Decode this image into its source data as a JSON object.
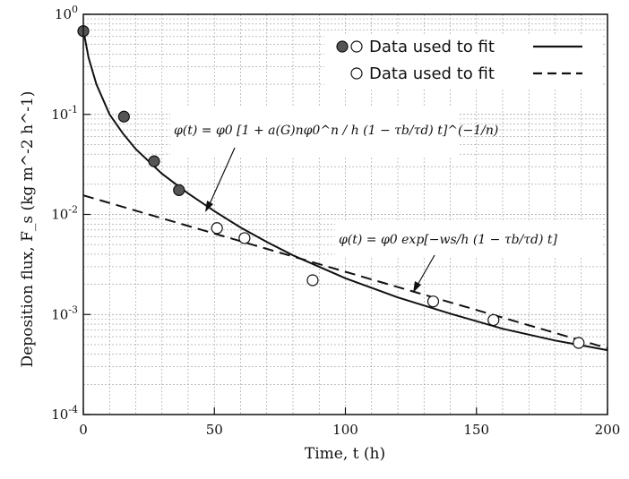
{
  "chart_data": {
    "type": "scatter",
    "title": "",
    "xlabel": "Time, t (h)",
    "ylabel": "Deposition flux, F_s (kg m^-2 h^-1)",
    "x_scale": "linear",
    "y_scale": "log",
    "xlim": [
      0,
      200
    ],
    "ylim": [
      0.0001,
      1
    ],
    "x_ticks": [
      "0",
      "50",
      "100",
      "150",
      "200"
    ],
    "y_ticks": [
      {
        "base": "10",
        "exp": "0",
        "value": 1
      },
      {
        "base": "10",
        "exp": "-1",
        "value": 0.1
      },
      {
        "base": "10",
        "exp": "-2",
        "value": 0.01
      },
      {
        "base": "10",
        "exp": "-3",
        "value": 0.001
      },
      {
        "base": "10",
        "exp": "-4",
        "value": 0.0001
      }
    ],
    "grid": true,
    "legend_position": "top-right",
    "legend": [
      {
        "label": "Data used to fit",
        "markers": [
          "filled",
          "open"
        ],
        "line": "solid"
      },
      {
        "label": "Data used to fit",
        "markers": [
          "open"
        ],
        "line": "dashed"
      }
    ],
    "series": [
      {
        "marker": "filled",
        "x": [
          0,
          15.5,
          27,
          36.5
        ],
        "y": [
          0.68,
          0.095,
          0.034,
          0.0175
        ]
      },
      {
        "marker": "open",
        "x": [
          51,
          61.5,
          87.5,
          133.5,
          156.5,
          189
        ],
        "y": [
          0.0073,
          0.0058,
          0.0022,
          0.00135,
          0.00088,
          0.00052
        ]
      }
    ],
    "fit_curves": [
      {
        "style": "solid",
        "equation": "φ(t) = φ0 [1 + a(G)nφ0^n / h (1 − τb/τd) t]^(−1/n)",
        "x": [
          0,
          2,
          5,
          10,
          15,
          20,
          30,
          40,
          50,
          60,
          70,
          80,
          100,
          120,
          140,
          160,
          180,
          200
        ],
        "y": [
          0.7,
          0.37,
          0.2,
          0.1,
          0.065,
          0.045,
          0.0255,
          0.0162,
          0.0108,
          0.0074,
          0.0053,
          0.0039,
          0.0023,
          0.00148,
          0.00102,
          0.00072,
          0.00055,
          0.00044
        ]
      },
      {
        "style": "dashed",
        "equation": "φ(t) = φ0 exp[−ws/h (1 − τb/τd) t]",
        "x": [
          0,
          200
        ],
        "y": [
          0.0155,
          0.00046
        ]
      }
    ],
    "annotations": [
      "φ(t) = φ0 [1 + a(G)nφ0^n / h (1 − τb/τd) t]^(−1/n)",
      "φ(t) = φ0 exp[−ws/h (1 − τb/τd) t]"
    ],
    "colors": {
      "filled_marker": "#555555",
      "open_marker": "#ffffff",
      "line": "#111111"
    }
  }
}
